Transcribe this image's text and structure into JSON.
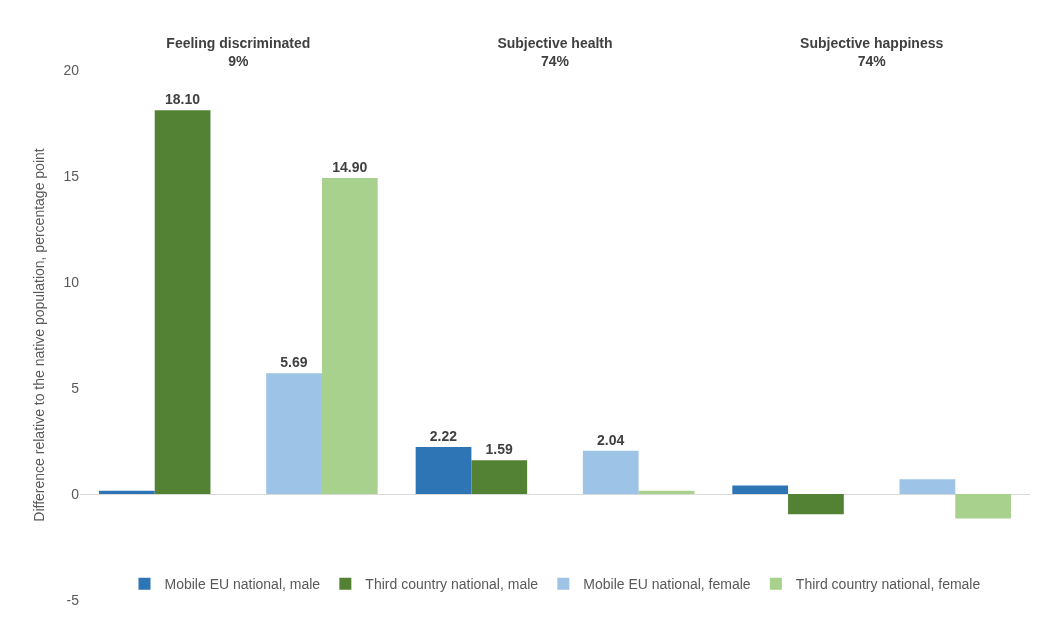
{
  "chart_data": {
    "type": "bar",
    "categories": [
      "Feeling discriminated\n9%",
      "Subjective health\n74%",
      "Subjective happiness\n74%"
    ],
    "ylabel": "Difference relative to the native population, percentage point",
    "ylim": [
      -5,
      20
    ],
    "yticks": [
      -5,
      0,
      5,
      10,
      15,
      20
    ],
    "legend": "bottom",
    "series": [
      {
        "name": "Mobile EU national, male",
        "color": "#2e75b6",
        "values": [
          0.15,
          2.22,
          0.4
        ],
        "value_labels": [
          null,
          "2.22",
          null
        ]
      },
      {
        "name": "Third country national, male",
        "color": "#548235",
        "values": [
          18.1,
          1.59,
          -0.95
        ],
        "value_labels": [
          "18.10",
          "1.59",
          null
        ]
      },
      {
        "color": "#4472c4",
        "values": [
          null,
          null,
          null
        ]
      },
      {
        "name": "Mobile EU national, female",
        "color": "#9dc3e6",
        "values": [
          5.69,
          2.04,
          0.7
        ],
        "value_labels": [
          "5.69",
          "2.04",
          null
        ]
      },
      {
        "name": "Third country national, female",
        "color": "#a9d18e",
        "values": [
          14.9,
          0.15,
          -1.15
        ],
        "value_labels": [
          "14.90",
          null,
          null
        ]
      }
    ]
  }
}
